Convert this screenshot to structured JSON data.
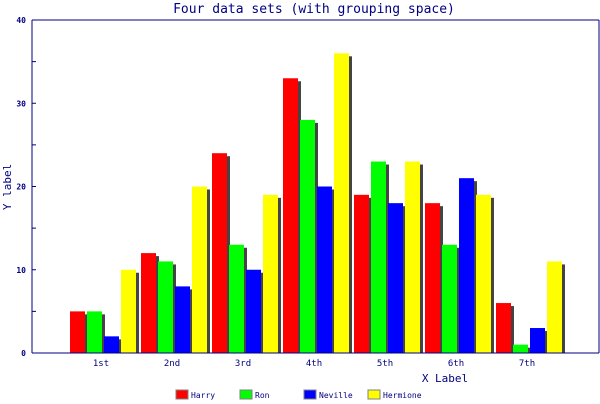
{
  "chart_data": {
    "type": "bar",
    "title": "Four data sets (with grouping space)",
    "xlabel": "X Label",
    "ylabel": "Y label",
    "ylim": [
      0,
      40
    ],
    "yticks": [
      "0",
      "10",
      "20",
      "30",
      "40"
    ],
    "categories": [
      "1st",
      "2nd",
      "3rd",
      "4th",
      "5th",
      "6th",
      "7th"
    ],
    "series": [
      {
        "name": "Harry",
        "color": "#ff0000",
        "values": [
          5,
          12,
          24,
          33,
          19,
          18,
          6
        ]
      },
      {
        "name": "Ron",
        "color": "#00ff00",
        "values": [
          5,
          11,
          13,
          28,
          23,
          13,
          1
        ]
      },
      {
        "name": "Neville",
        "color": "#0000ff",
        "values": [
          2,
          8,
          10,
          20,
          18,
          21,
          3
        ]
      },
      {
        "name": "Hermione",
        "color": "#ffff00",
        "values": [
          10,
          20,
          19,
          36,
          23,
          19,
          11
        ]
      }
    ],
    "legend_position": "bottom",
    "grid": false
  }
}
